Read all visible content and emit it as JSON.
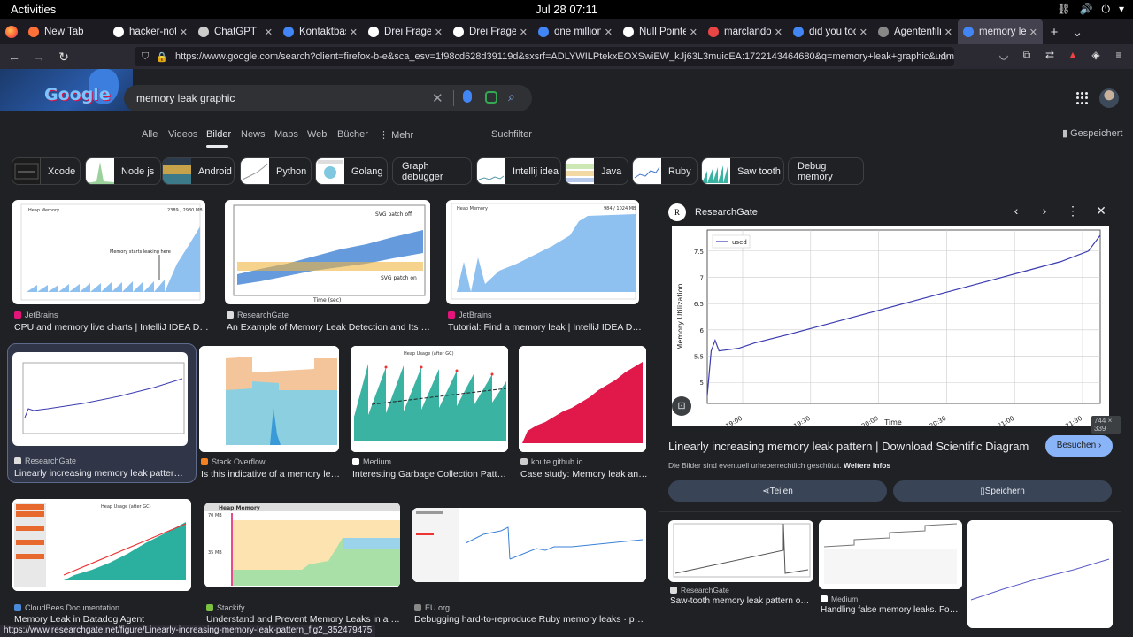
{
  "system": {
    "activities": "Activities",
    "clock": "Jul 28  07:11"
  },
  "tabs": [
    {
      "title": "New Tab",
      "icon": "firefox-icon",
      "color": "#ff7139"
    },
    {
      "title": "hacker-notes",
      "icon": "github-icon",
      "color": "#ffffff"
    },
    {
      "title": "ChatGPT",
      "icon": "chatgpt-icon",
      "color": "#cccccc"
    },
    {
      "title": "Kontaktbasie",
      "icon": "google-icon",
      "color": "#4285f4"
    },
    {
      "title": "Drei Fragen u",
      "icon": "wordpress-icon",
      "color": "#ffffff"
    },
    {
      "title": "Drei Fragen u",
      "icon": "wordpress-icon",
      "color": "#ffffff"
    },
    {
      "title": "one million d",
      "icon": "google-icon",
      "color": "#4285f4"
    },
    {
      "title": "Null Pointer I",
      "icon": "nullpointer-icon",
      "color": "#ffffff"
    },
    {
      "title": "marclandolt",
      "icon": "site-icon",
      "color": "#e84545"
    },
    {
      "title": "did you took",
      "icon": "google-icon",
      "color": "#4285f4"
    },
    {
      "title": "Agentenfilm",
      "icon": "site-icon",
      "color": "#888888"
    },
    {
      "title": "memory leak",
      "icon": "google-icon",
      "color": "#4285f4"
    }
  ],
  "url": "https://www.google.com/search?client=firefox-b-e&sca_esv=1f98cd628d39119d&sxsrf=ADLYWILPtekxEOXSwiEW_kJj63L3muicEA:1722143464680&q=memory+leak+graphic&udm=2&fbs=",
  "search": {
    "query": "memory leak graphic"
  },
  "filters": {
    "items": [
      "Alle",
      "Videos",
      "Bilder",
      "News",
      "Maps",
      "Web",
      "Bücher",
      "Mehr"
    ],
    "tools": "Suchfilter",
    "saved": "Gespeichert"
  },
  "chips": [
    "Xcode",
    "Node js",
    "Android",
    "Python",
    "Golang",
    "Graph debugger",
    "Intellij idea",
    "Java",
    "Ruby",
    "Saw tooth",
    "Debug memory"
  ],
  "results": [
    {
      "source": "JetBrains",
      "title": "CPU and memory live charts | IntelliJ IDEA Docu..."
    },
    {
      "source": "ResearchGate",
      "title": "An Example of Memory Leak Detection and Its Res..."
    },
    {
      "source": "JetBrains",
      "title": "Tutorial: Find a memory leak | IntelliJ IDEA Docu..."
    },
    {
      "source": "ResearchGate",
      "title": "Linearly increasing memory leak pattern | ..."
    },
    {
      "source": "Stack Overflow",
      "title": "Is this indicative of a memory lea..."
    },
    {
      "source": "Medium",
      "title": "Interesting Garbage Collection Patte..."
    },
    {
      "source": "koute.github.io",
      "title": "Case study: Memory leak ana..."
    },
    {
      "source": "CloudBees Documentation",
      "title": "Memory Leak in Datadog Agent"
    },
    {
      "source": "Stackify",
      "title": "Understand and Prevent Memory Leaks in a Jav..."
    },
    {
      "source": "EU.org",
      "title": "Debugging hard-to-reproduce Ruby memory leaks · perlun..."
    }
  ],
  "thumb_text": {
    "heap_memory": "Heap Memory",
    "heap_memory_value": "2389 / 2930 MB",
    "leak_annotation": "Memory starts leaking here",
    "svg_patch_off": "SVG patch off",
    "svg_patch_on": "SVG patch on",
    "time_sec": "Time (sec)",
    "heap_memory_2": "Heap Memory",
    "heap_memory_2_value": "984 / 1024 MB",
    "heap_after_gc": "Heap Usage (after GC)",
    "heap_after_gc_2": "Heap Usage (after GC)",
    "heap_memory_3": "Heap Memory",
    "mb_70": "70 MB",
    "mb_35": "35 MB"
  },
  "panel": {
    "site": "ResearchGate",
    "logo_text": "R",
    "title": "Linearly increasing memory leak pattern | Download Scientific Diagram",
    "visit": "Besuchen",
    "copyright": "Die Bilder sind eventuell urheberrechtlich geschützt.",
    "more_info": "Weitere Infos",
    "share": "Teilen",
    "save": "Speichern",
    "dims": "744 × 339",
    "related": [
      {
        "source": "ResearchGate",
        "title": "Saw-tooth memory leak pattern obs..."
      },
      {
        "source": "Medium",
        "title": "Handling false memory leaks. For t..."
      }
    ]
  },
  "chart_data": {
    "type": "line",
    "legend": "used",
    "legend_position": "top-left",
    "ylabel": "Memory Utilization",
    "xlabel": "Time",
    "x_ticks": [
      "19 19:00",
      "19 19:30",
      "19 20:00",
      "19 20:30",
      "19 21:00",
      "19 21:30"
    ],
    "y_ticks": [
      5.0,
      5.5,
      6.0,
      6.5,
      7.0,
      7.5
    ],
    "ylim": [
      4.6,
      7.9
    ],
    "grid": true,
    "series": [
      {
        "name": "used",
        "color": "#3b3bb0",
        "x": [
          0,
          0.01,
          0.02,
          0.03,
          0.05,
          0.08,
          0.12,
          0.2,
          0.3,
          0.4,
          0.5,
          0.6,
          0.7,
          0.8,
          0.9,
          0.97,
          1.0
        ],
        "values": [
          4.75,
          5.6,
          5.8,
          5.6,
          5.62,
          5.65,
          5.75,
          5.9,
          6.1,
          6.3,
          6.5,
          6.7,
          6.9,
          7.1,
          7.3,
          7.5,
          7.8
        ]
      }
    ]
  },
  "status_url": "https://www.researchgate.net/figure/Linearly-increasing-memory-leak-pattern_fig2_352479475"
}
